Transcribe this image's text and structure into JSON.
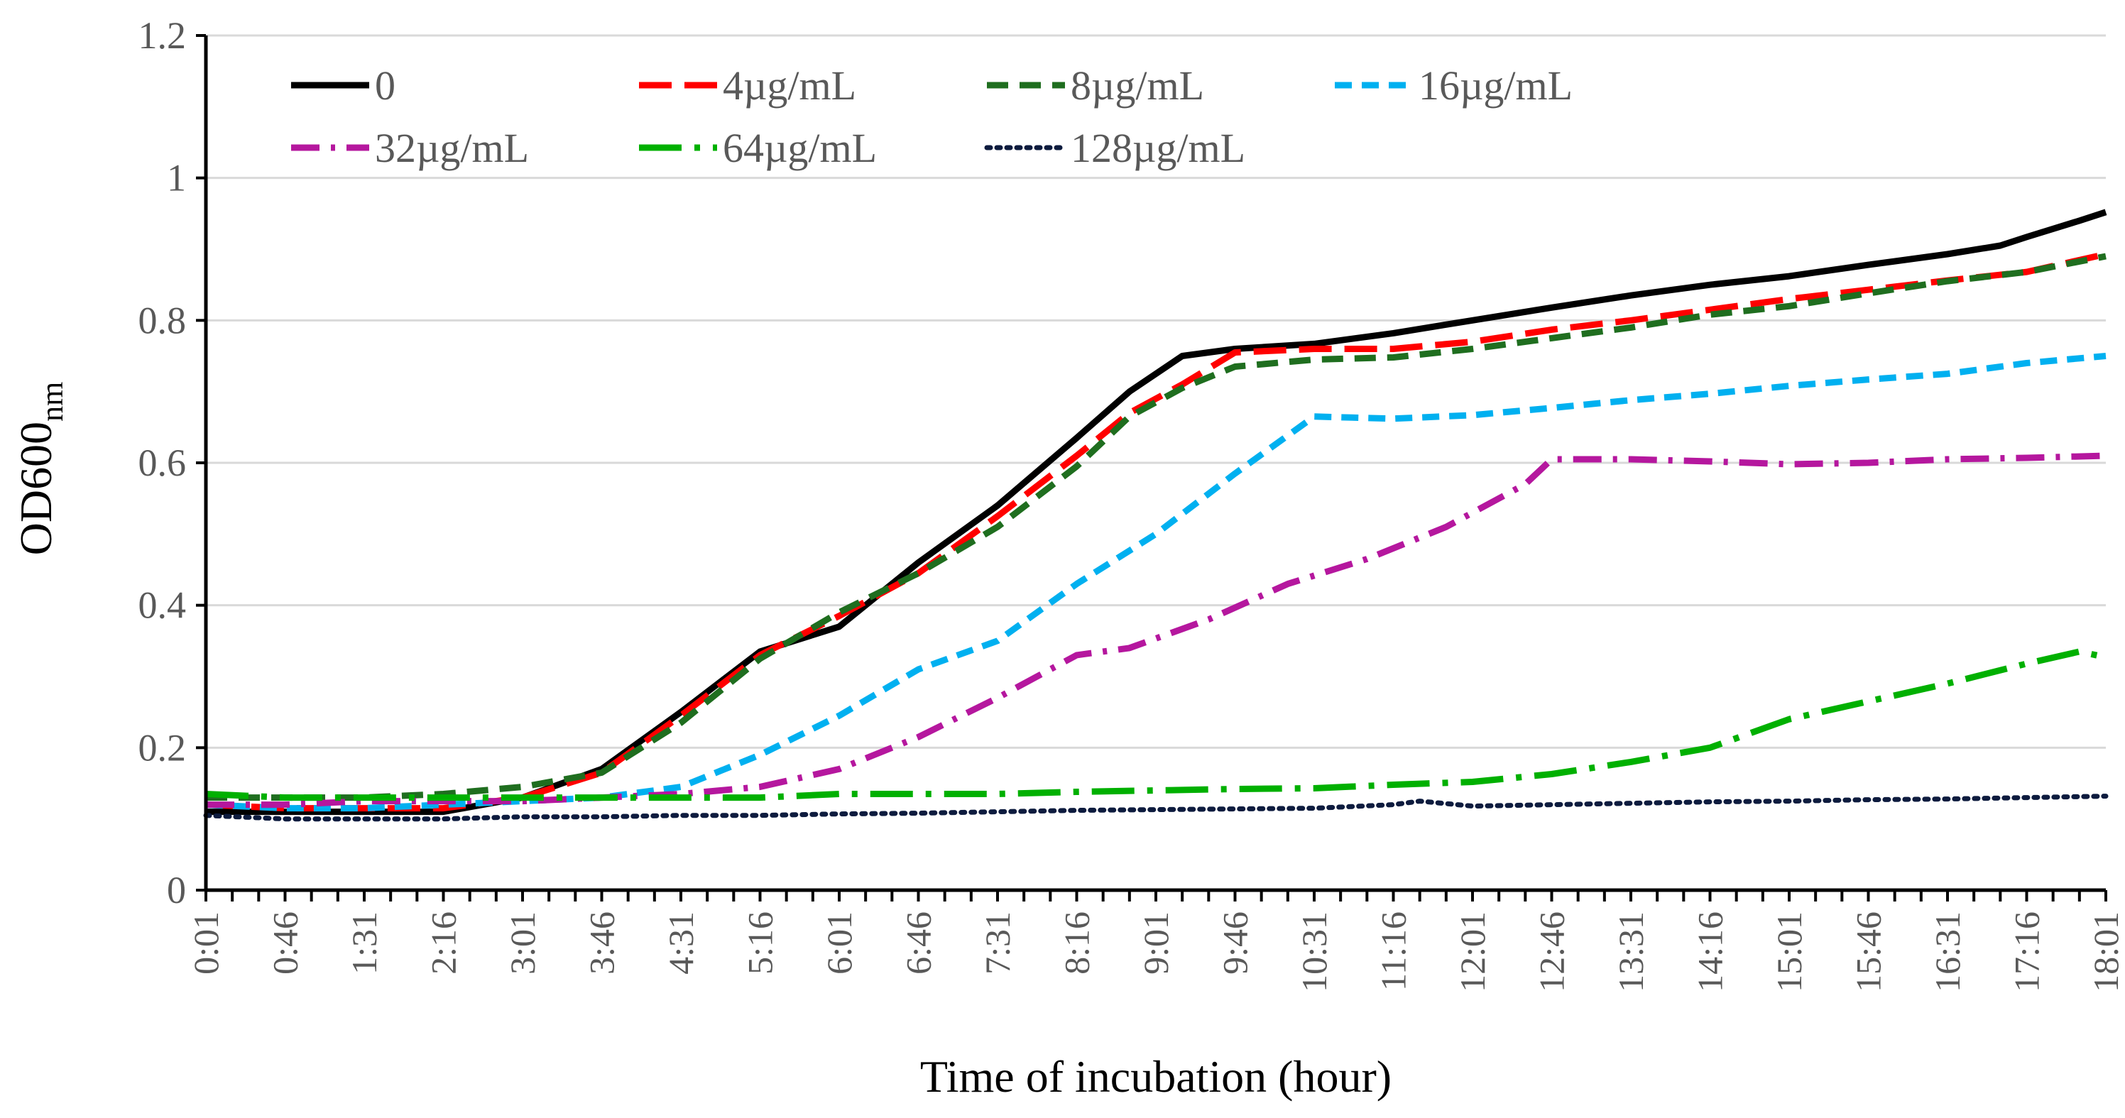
{
  "chart_data": {
    "type": "line",
    "title": "",
    "xlabel": "Time of incubation (hour)",
    "ylabel_main": "OD600",
    "ylabel_sub": "nm",
    "ylim": [
      0,
      1.2
    ],
    "yticks": [
      "0",
      "0.2",
      "0.4",
      "0.6",
      "0.8",
      "1",
      "1.2"
    ],
    "ytick_values": [
      0,
      0.2,
      0.4,
      0.6,
      0.8,
      1.0,
      1.2
    ],
    "x_labels": [
      "0:01",
      "0:46",
      "1:31",
      "2:16",
      "3:01",
      "3:46",
      "4:31",
      "5:16",
      "6:01",
      "6:46",
      "7:31",
      "8:16",
      "9:01",
      "9:46",
      "10:31",
      "11:16",
      "12:01",
      "12:46",
      "13:31",
      "14:16",
      "15:01",
      "15:46",
      "16:31",
      "17:16",
      "18:01"
    ],
    "x_hours": [
      0,
      0.75,
      1.5,
      2.25,
      3,
      3.75,
      4.5,
      5.25,
      6,
      6.75,
      7.5,
      8.25,
      9,
      9.75,
      10.5,
      11.25,
      12,
      12.75,
      13.5,
      14.25,
      15,
      15.75,
      16.5,
      17.25,
      18
    ],
    "xlim_hours": [
      0,
      18
    ],
    "minor_tick_interval_hours": 0.25,
    "legend_position": "top-left inside plot",
    "series": [
      {
        "name": "0",
        "color": "#000000",
        "dash": "solid",
        "points": [
          [
            0,
            0.11
          ],
          [
            0.75,
            0.11
          ],
          [
            1.5,
            0.11
          ],
          [
            2.25,
            0.11
          ],
          [
            3,
            0.13
          ],
          [
            3.75,
            0.17
          ],
          [
            4.5,
            0.25
          ],
          [
            5.25,
            0.335
          ],
          [
            6,
            0.37
          ],
          [
            6.75,
            0.46
          ],
          [
            7.5,
            0.54
          ],
          [
            8.25,
            0.635
          ],
          [
            8.75,
            0.7
          ],
          [
            9.25,
            0.75
          ],
          [
            9.75,
            0.76
          ],
          [
            10.5,
            0.767
          ],
          [
            11.25,
            0.782
          ],
          [
            12,
            0.8
          ],
          [
            12.75,
            0.818
          ],
          [
            13.5,
            0.835
          ],
          [
            14.25,
            0.85
          ],
          [
            15,
            0.862
          ],
          [
            15.75,
            0.878
          ],
          [
            16.5,
            0.893
          ],
          [
            17,
            0.905
          ],
          [
            17.25,
            0.917
          ],
          [
            17.75,
            0.94
          ],
          [
            18,
            0.952
          ]
        ]
      },
      {
        "name": "4µg/mL",
        "color": "#ff0000",
        "dash": "long-dash",
        "points": [
          [
            0,
            0.12
          ],
          [
            0.75,
            0.115
          ],
          [
            1.5,
            0.115
          ],
          [
            2.25,
            0.115
          ],
          [
            3,
            0.13
          ],
          [
            3.75,
            0.165
          ],
          [
            4.5,
            0.245
          ],
          [
            5.25,
            0.33
          ],
          [
            6,
            0.385
          ],
          [
            6.75,
            0.445
          ],
          [
            7.5,
            0.525
          ],
          [
            8.25,
            0.61
          ],
          [
            8.75,
            0.67
          ],
          [
            9.25,
            0.71
          ],
          [
            9.75,
            0.755
          ],
          [
            10.5,
            0.76
          ],
          [
            11.25,
            0.76
          ],
          [
            12,
            0.77
          ],
          [
            12.75,
            0.787
          ],
          [
            13.5,
            0.8
          ],
          [
            14.25,
            0.815
          ],
          [
            15,
            0.83
          ],
          [
            15.75,
            0.843
          ],
          [
            16.5,
            0.856
          ],
          [
            17.25,
            0.868
          ],
          [
            18,
            0.893
          ]
        ]
      },
      {
        "name": "8µg/mL",
        "color": "#1f6e1f",
        "dash": "dash",
        "points": [
          [
            0,
            0.13
          ],
          [
            0.75,
            0.13
          ],
          [
            1.5,
            0.13
          ],
          [
            2.25,
            0.135
          ],
          [
            3,
            0.145
          ],
          [
            3.75,
            0.165
          ],
          [
            4.5,
            0.235
          ],
          [
            5.25,
            0.325
          ],
          [
            6,
            0.39
          ],
          [
            6.75,
            0.445
          ],
          [
            7.5,
            0.51
          ],
          [
            8.25,
            0.595
          ],
          [
            8.75,
            0.665
          ],
          [
            9.25,
            0.705
          ],
          [
            9.75,
            0.735
          ],
          [
            10.5,
            0.745
          ],
          [
            11.25,
            0.748
          ],
          [
            12,
            0.76
          ],
          [
            12.75,
            0.775
          ],
          [
            13.5,
            0.79
          ],
          [
            14.25,
            0.808
          ],
          [
            15,
            0.82
          ],
          [
            15.75,
            0.838
          ],
          [
            16.5,
            0.855
          ],
          [
            17.25,
            0.868
          ],
          [
            18,
            0.89
          ]
        ]
      },
      {
        "name": "16µg/mL",
        "color": "#00b0f0",
        "dash": "medium-dash",
        "points": [
          [
            0,
            0.12
          ],
          [
            0.75,
            0.115
          ],
          [
            1.5,
            0.115
          ],
          [
            2.25,
            0.12
          ],
          [
            3,
            0.125
          ],
          [
            3.75,
            0.13
          ],
          [
            4.5,
            0.145
          ],
          [
            5.25,
            0.19
          ],
          [
            6,
            0.245
          ],
          [
            6.75,
            0.31
          ],
          [
            7.5,
            0.35
          ],
          [
            8.25,
            0.43
          ],
          [
            9,
            0.5
          ],
          [
            9.75,
            0.585
          ],
          [
            10.5,
            0.665
          ],
          [
            11.25,
            0.662
          ],
          [
            12,
            0.667
          ],
          [
            12.75,
            0.677
          ],
          [
            13.5,
            0.688
          ],
          [
            14.25,
            0.697
          ],
          [
            15,
            0.708
          ],
          [
            15.75,
            0.717
          ],
          [
            16.5,
            0.725
          ],
          [
            17.25,
            0.74
          ],
          [
            18,
            0.75
          ]
        ]
      },
      {
        "name": "32µg/mL",
        "color": "#b5179e",
        "dash": "dash-dot",
        "points": [
          [
            0,
            0.12
          ],
          [
            0.75,
            0.12
          ],
          [
            1.5,
            0.125
          ],
          [
            2.25,
            0.125
          ],
          [
            3,
            0.125
          ],
          [
            3.75,
            0.13
          ],
          [
            4.5,
            0.135
          ],
          [
            5.25,
            0.145
          ],
          [
            6,
            0.17
          ],
          [
            6.75,
            0.215
          ],
          [
            7.5,
            0.27
          ],
          [
            8.25,
            0.33
          ],
          [
            8.75,
            0.34
          ],
          [
            9.5,
            0.38
          ],
          [
            10.25,
            0.43
          ],
          [
            11,
            0.465
          ],
          [
            11.75,
            0.51
          ],
          [
            12.5,
            0.57
          ],
          [
            12.75,
            0.605
          ],
          [
            13.5,
            0.605
          ],
          [
            14.25,
            0.602
          ],
          [
            15,
            0.598
          ],
          [
            15.75,
            0.6
          ],
          [
            16.5,
            0.605
          ],
          [
            17.25,
            0.607
          ],
          [
            18,
            0.61
          ]
        ]
      },
      {
        "name": "64µg/mL",
        "color": "#00b000",
        "dash": "long-dash-dot",
        "points": [
          [
            0,
            0.135
          ],
          [
            0.75,
            0.13
          ],
          [
            1.5,
            0.13
          ],
          [
            2.25,
            0.13
          ],
          [
            3,
            0.13
          ],
          [
            3.75,
            0.13
          ],
          [
            4.5,
            0.13
          ],
          [
            5.25,
            0.13
          ],
          [
            6,
            0.135
          ],
          [
            6.75,
            0.135
          ],
          [
            7.5,
            0.135
          ],
          [
            8.25,
            0.138
          ],
          [
            9,
            0.14
          ],
          [
            9.75,
            0.142
          ],
          [
            10.5,
            0.143
          ],
          [
            11.25,
            0.148
          ],
          [
            12,
            0.152
          ],
          [
            12.75,
            0.163
          ],
          [
            13.5,
            0.18
          ],
          [
            14.25,
            0.2
          ],
          [
            15,
            0.24
          ],
          [
            15.75,
            0.265
          ],
          [
            16.5,
            0.29
          ],
          [
            17.25,
            0.318
          ],
          [
            17.75,
            0.335
          ],
          [
            18,
            0.327
          ]
        ]
      },
      {
        "name": "128µg/mL",
        "color": "#0d1b3e",
        "dash": "dotted",
        "points": [
          [
            0,
            0.105
          ],
          [
            0.75,
            0.1
          ],
          [
            1.5,
            0.1
          ],
          [
            2.25,
            0.1
          ],
          [
            3,
            0.103
          ],
          [
            3.75,
            0.103
          ],
          [
            4.5,
            0.105
          ],
          [
            5.25,
            0.105
          ],
          [
            6,
            0.107
          ],
          [
            6.75,
            0.108
          ],
          [
            7.5,
            0.11
          ],
          [
            8.25,
            0.112
          ],
          [
            9,
            0.113
          ],
          [
            9.75,
            0.114
          ],
          [
            10.5,
            0.115
          ],
          [
            11.25,
            0.12
          ],
          [
            11.5,
            0.125
          ],
          [
            12,
            0.118
          ],
          [
            12.75,
            0.12
          ],
          [
            13.5,
            0.122
          ],
          [
            14.25,
            0.124
          ],
          [
            15,
            0.125
          ],
          [
            15.75,
            0.127
          ],
          [
            16.5,
            0.128
          ],
          [
            17.25,
            0.13
          ],
          [
            18,
            0.132
          ]
        ]
      }
    ]
  }
}
